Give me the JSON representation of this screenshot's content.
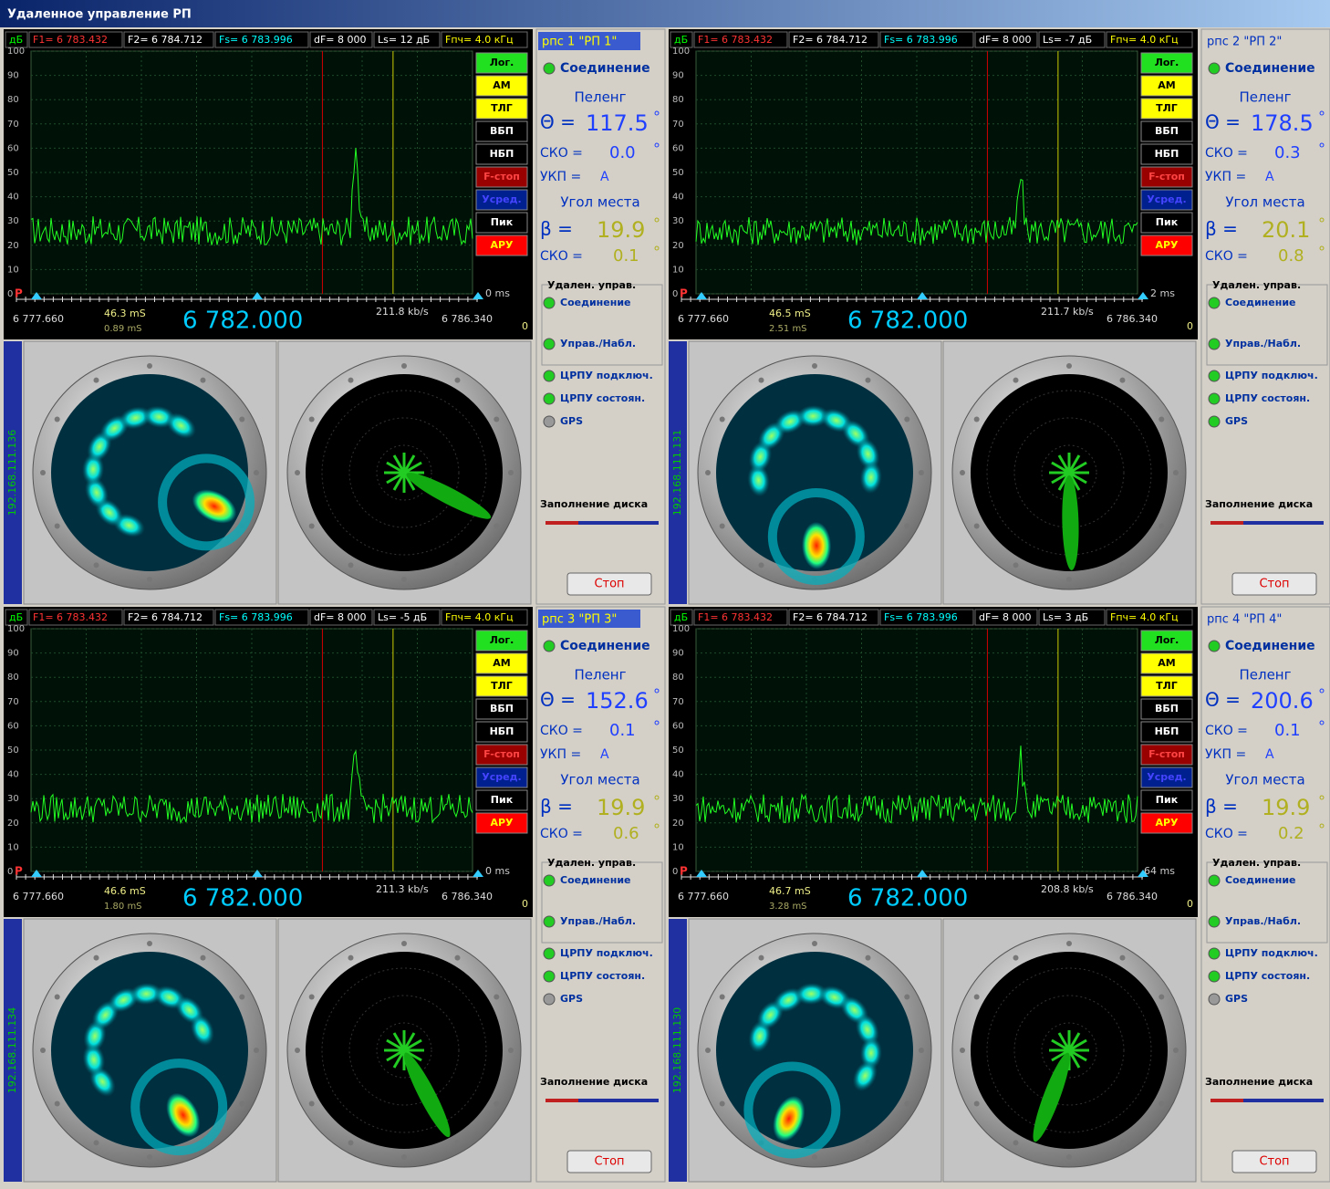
{
  "window_title": "Удаленное управление РП",
  "common": {
    "db_unit": "дБ",
    "f1": "F1= 6 783.432",
    "f2": "F2= 6 784.712",
    "fs": "Fs= 6 783.996",
    "df": "dF= 8 000",
    "fif": "Fпч= 4.0 кГц",
    "yticks": [
      0,
      10,
      20,
      30,
      40,
      50,
      60,
      70,
      80,
      90,
      100
    ],
    "ylim": [
      0,
      100
    ],
    "p_marker": "P",
    "freq_low": "6 777.660",
    "freq_center": "6 782.000",
    "freq_high": "6 786.340",
    "zero": "0",
    "buttons": [
      "Лог.",
      "АМ",
      "ТЛГ",
      "ВБП",
      "НБП",
      "F-стоп",
      "Усред.",
      "Пик",
      "АРУ"
    ],
    "connection": "Соединение",
    "bearing": "Пеленг",
    "theta": "Θ =",
    "deg": "°",
    "sko": "СКО =",
    "ukp": "УКП =",
    "elevation": "Угол места",
    "beta": "β =",
    "remote": "Удален. управ.",
    "remote_conn": "Соединение",
    "control": "Управ./Набл.",
    "crpu_conn": "ЦРПУ подключ.",
    "crpu_state": "ЦРПУ состоян.",
    "gps": "GPS",
    "disk": "Заполнение диска",
    "stop": "Стоп"
  },
  "stations": [
    {
      "name": "рпс 1 \"РП 1\"",
      "active": true,
      "ls": "Ls= 12 дБ",
      "delay": "46.3 mS",
      "jitter": "0.89 mS",
      "rate": "211.8 kb/s",
      "latency": "0 ms",
      "ip": "192.168.111.136",
      "theta": "117.5",
      "sko1": "0.0",
      "ukp": "A",
      "beta": "19.9",
      "sko2": "0.1",
      "gps_on": false
    },
    {
      "name": "рпс 2 \"РП 2\"",
      "active": false,
      "ls": "Ls= -7 дБ",
      "delay": "46.5 mS",
      "jitter": "2.51 mS",
      "rate": "211.7 kb/s",
      "latency": "2 ms",
      "ip": "192.168.111.131",
      "theta": "178.5",
      "sko1": "0.3",
      "ukp": "A",
      "beta": "20.1",
      "sko2": "0.8",
      "gps_on": true
    },
    {
      "name": "рпс 3 \"РП 3\"",
      "active": true,
      "ls": "Ls= -5 дБ",
      "delay": "46.6 mS",
      "jitter": "1.80 mS",
      "rate": "211.3 kb/s",
      "latency": "0 ms",
      "ip": "192.168.111.134",
      "theta": "152.6",
      "sko1": "0.1",
      "ukp": "A",
      "beta": "19.9",
      "sko2": "0.6",
      "gps_on": false
    },
    {
      "name": "рпс 4 \"РП 4\"",
      "active": false,
      "ls": "Ls= 3 дБ",
      "delay": "46.7 mS",
      "jitter": "3.28 mS",
      "rate": "208.8 kb/s",
      "latency": "64 ms",
      "ip": "192.168.111.130",
      "theta": "200.6",
      "sko1": "0.1",
      "ukp": "A",
      "beta": "19.9",
      "sko2": "0.2",
      "gps_on": false
    }
  ]
}
